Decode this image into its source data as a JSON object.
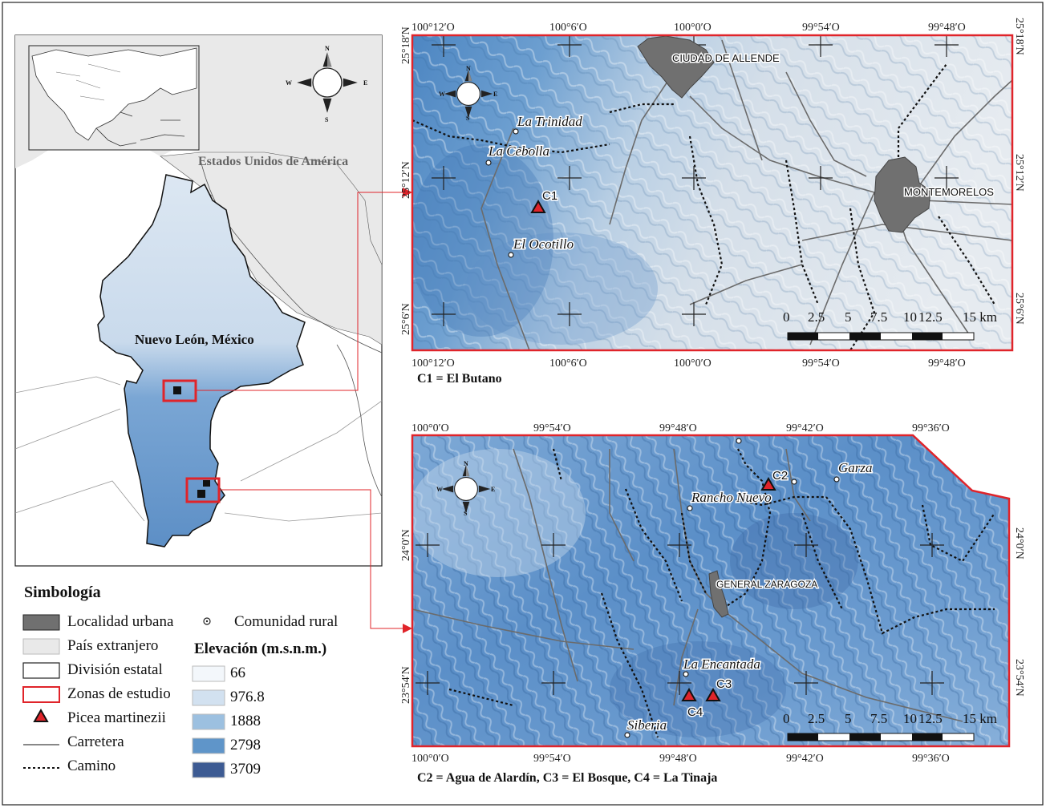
{
  "overview": {
    "country_label": "Estados Unidos de América",
    "state_label": "Nuevo León, México"
  },
  "panel_top": {
    "cities": [
      "CIUDAD DE ALLENDE",
      "MONTEMORELOS"
    ],
    "communities": [
      "La Trinidad",
      "La Cebolla",
      "El Ocotillo"
    ],
    "site": "C1",
    "x_ticks": [
      "100°12′O",
      "100°6′O",
      "100°0′O",
      "99°54′O",
      "99°48′O"
    ],
    "y_ticks": [
      "25°18′N",
      "25°12′N",
      "25°6′N"
    ],
    "scale_labels": [
      "0",
      "2.5",
      "5",
      "7.5",
      "10",
      "12.5",
      "15 km"
    ],
    "caption": "C1 = El Butano"
  },
  "panel_bottom": {
    "city": "GENERAL ZARAGOZA",
    "communities": [
      "Rancho Nuevo",
      "Garza",
      "La Encantada",
      "Siberia"
    ],
    "sites": [
      "C2",
      "C3",
      "C4"
    ],
    "x_ticks": [
      "100°0′O",
      "99°54′O",
      "99°48′O",
      "99°42′O",
      "99°36′O"
    ],
    "y_ticks": [
      "24°0′N",
      "23°54′N"
    ],
    "scale_labels": [
      "0",
      "2.5",
      "5",
      "7.5",
      "10",
      "12.5",
      "15 km"
    ],
    "caption": "C2 = Agua de Alardín, C3 = El Bosque, C4 = La Tinaja"
  },
  "compass": {
    "n": "N",
    "s": "S",
    "e": "E",
    "w": "W"
  },
  "legend": {
    "title": "Simbología",
    "items": [
      "Localidad urbana",
      "País extranjero",
      "División estatal",
      "Zonas de estudio",
      "Picea martinezii",
      "Carretera",
      "Camino"
    ],
    "rural_label": "Comunidad rural",
    "elevation_title": "Elevación (m.s.n.m.)",
    "elevation_values": [
      "66",
      "976.8",
      "1888",
      "2798",
      "3709"
    ],
    "elevation_colors": [
      "#f3f7fb",
      "#d2e1f0",
      "#9cc0e0",
      "#5f95c9",
      "#3d5b93"
    ]
  },
  "colors": {
    "frame_red": "#e0242a",
    "urban": "#707070",
    "foreign": "#e9e9e9"
  }
}
